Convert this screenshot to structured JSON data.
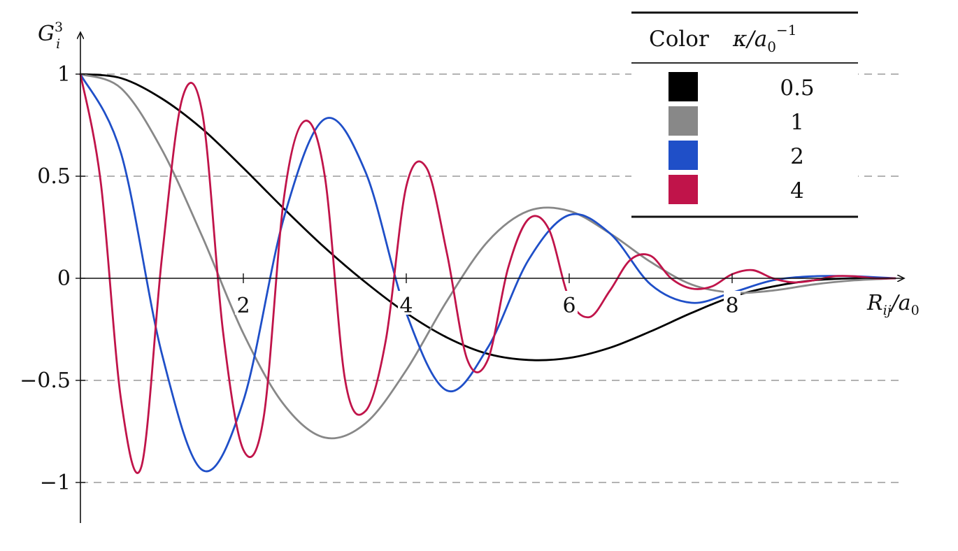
{
  "chart_data": {
    "type": "line",
    "title": "",
    "xlabel": "R_ij/a_0",
    "xlabel_base": "R",
    "xlabel_sub": "ij",
    "xlabel_tail": "/a",
    "xlabel_tail_sub": "0",
    "ylabel": "G_i^3",
    "ylabel_base": "G",
    "ylabel_sub": "i",
    "ylabel_sup": "3",
    "xlim": [
      0,
      10
    ],
    "ylim": [
      -1.2,
      1.2
    ],
    "x_ticks": [
      2,
      4,
      6,
      8
    ],
    "x_tick_labels": [
      "2",
      "4",
      "6",
      "8"
    ],
    "y_ticks": [
      1,
      0.5,
      0,
      -0.5,
      -1
    ],
    "y_tick_labels": [
      "1",
      "0.5",
      "0",
      "−0.5",
      "−1"
    ],
    "grid": "horizontal dashed at y ticks",
    "legend_placement": "top-right",
    "legend": {
      "col1_header": "Color",
      "col2_header": "κ/a₀⁻¹",
      "col2_base": "κ/a",
      "col2_sub": "0",
      "col2_sup": "−1"
    },
    "series": [
      {
        "name": "0.5",
        "kappa": 0.5,
        "color": "#000000",
        "x": [
          0,
          0.5,
          1,
          1.5,
          2,
          2.5,
          3,
          3.5,
          4,
          4.5,
          5,
          5.5,
          6,
          6.5,
          7,
          7.5,
          8,
          8.5,
          9,
          9.5,
          10
        ],
        "y": [
          1.0,
          0.98,
          0.88,
          0.73,
          0.54,
          0.34,
          0.15,
          -0.02,
          -0.17,
          -0.29,
          -0.37,
          -0.4,
          -0.39,
          -0.34,
          -0.26,
          -0.17,
          -0.09,
          -0.04,
          -0.01,
          0.0,
          0.0
        ]
      },
      {
        "name": "1",
        "kappa": 1,
        "color": "#888888",
        "x": [
          0,
          0.5,
          1,
          1.5,
          2,
          2.5,
          3,
          3.5,
          4,
          4.5,
          5,
          5.5,
          6,
          6.5,
          7,
          7.5,
          8,
          8.5,
          9,
          9.5,
          10
        ],
        "y": [
          1.0,
          0.93,
          0.63,
          0.2,
          -0.27,
          -0.62,
          -0.78,
          -0.71,
          -0.45,
          -0.11,
          0.18,
          0.33,
          0.33,
          0.22,
          0.08,
          -0.03,
          -0.07,
          -0.06,
          -0.03,
          -0.01,
          0.0
        ]
      },
      {
        "name": "2",
        "kappa": 2,
        "color": "#1f4fc8",
        "x": [
          0,
          0.5,
          1,
          1.5,
          2,
          2.5,
          3,
          3.5,
          4,
          4.5,
          5,
          5.5,
          6,
          6.5,
          7,
          7.5,
          8,
          8.5,
          9,
          9.5,
          10
        ],
        "y": [
          1.0,
          0.61,
          -0.37,
          -0.94,
          -0.6,
          0.3,
          0.78,
          0.52,
          -0.17,
          -0.55,
          -0.34,
          0.09,
          0.31,
          0.22,
          -0.03,
          -0.12,
          -0.07,
          -0.01,
          0.01,
          0.01,
          0.0
        ]
      },
      {
        "name": "4",
        "kappa": 4,
        "color": "#c0144a",
        "x": [
          0,
          0.25,
          0.5,
          0.75,
          1,
          1.25,
          1.5,
          1.75,
          2,
          2.25,
          2.5,
          2.75,
          3,
          3.25,
          3.5,
          3.75,
          4,
          4.25,
          4.5,
          4.75,
          5,
          5.25,
          5.5,
          5.75,
          6,
          6.25,
          6.5,
          6.75,
          7,
          7.25,
          7.5,
          7.75,
          8,
          8.25,
          8.5,
          8.75,
          9,
          9.25,
          9.5,
          9.75,
          10
        ],
        "y": [
          1.0,
          0.47,
          -0.6,
          -0.92,
          0.1,
          0.88,
          0.8,
          -0.26,
          -0.84,
          -0.68,
          0.4,
          0.77,
          0.5,
          -0.5,
          -0.65,
          -0.3,
          0.45,
          0.54,
          0.12,
          -0.4,
          -0.4,
          0.05,
          0.29,
          0.24,
          -0.1,
          -0.19,
          -0.06,
          0.09,
          0.11,
          0.0,
          -0.05,
          -0.04,
          0.02,
          0.04,
          0.0,
          -0.02,
          -0.01,
          0.01,
          0.01,
          0.0,
          0.0
        ]
      }
    ]
  }
}
